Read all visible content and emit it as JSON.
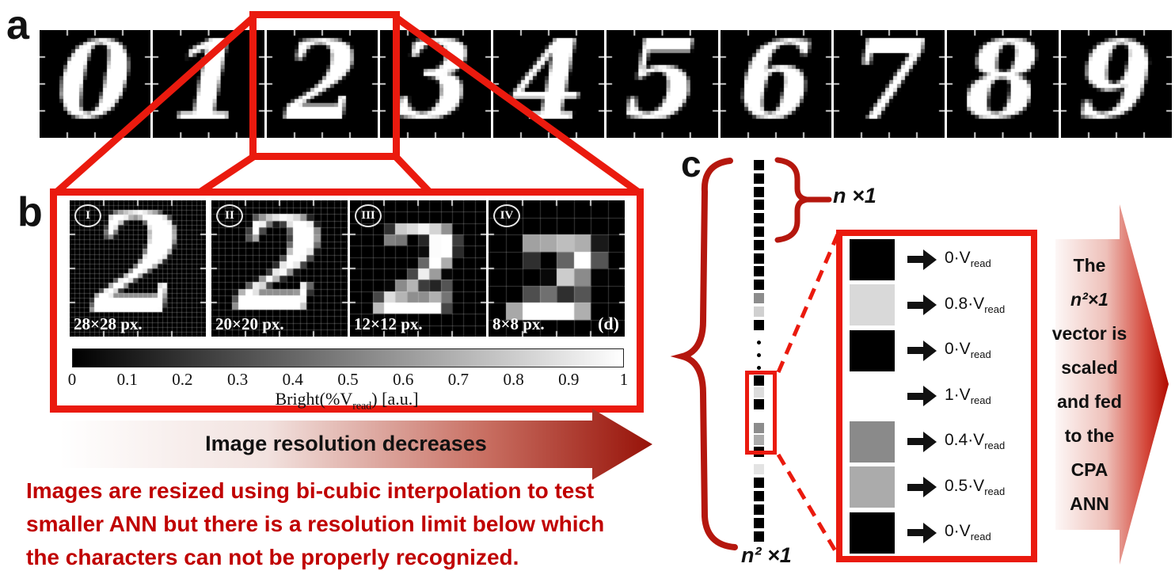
{
  "panel_a": {
    "label": "a",
    "digits": [
      "0",
      "1",
      "2",
      "3",
      "4",
      "5",
      "6",
      "7",
      "8",
      "9"
    ],
    "highlighted_digit": "2"
  },
  "panel_b": {
    "label": "b",
    "images": [
      {
        "numeral": "I",
        "resolution": 28,
        "caption": "28×28 px.",
        "corner_label": ""
      },
      {
        "numeral": "II",
        "resolution": 20,
        "caption": "20×20 px.",
        "corner_label": ""
      },
      {
        "numeral": "III",
        "resolution": 12,
        "caption": "12×12 px.",
        "corner_label": ""
      },
      {
        "numeral": "IV",
        "resolution": 8,
        "caption": "8×8 px.",
        "corner_label": "(d)"
      }
    ],
    "colorbar": {
      "tick_labels": [
        "0",
        "0.1",
        "0.2",
        "0.3",
        "0.4",
        "0.5",
        "0.6",
        "0.7",
        "0.8",
        "0.9",
        "1"
      ],
      "label_pre": "Bright(%V",
      "label_sub": "read",
      "label_post": ") [a.u.]"
    }
  },
  "resolution_arrow_label": "Image resolution decreases",
  "caption_lines": [
    "Images are resized using bi-cubic interpolation to test",
    "smaller ANN but there is a resolution limit below which",
    "the characters can not be properly recognized."
  ],
  "panel_c": {
    "label": "c",
    "n_top_label": "n ×1",
    "n_bottom_label": "n² ×1",
    "vector_cells": [
      "#000000",
      "#000000",
      "#000000",
      "#000000",
      "#000000",
      "#000000",
      "#000000",
      "#000000",
      "#000000",
      "#000000",
      "#8c8c8c",
      "#d0d0d0",
      "#000000",
      "DOTS",
      "#000000",
      "#dcdcdc",
      "#000000",
      "#ffffff",
      "#8c8c8c",
      "#ababab",
      "#000000",
      "#e3e3e3",
      "#000000",
      "#000000",
      "#000000",
      "#000000",
      "#000000"
    ],
    "zoom_rows": [
      {
        "color": "#000000",
        "value": "0"
      },
      {
        "color": "#d9d9d9",
        "value": "0.8"
      },
      {
        "color": "#000000",
        "value": "0"
      },
      {
        "color": "#ffffff",
        "value": "1"
      },
      {
        "color": "#8a8a8a",
        "value": "0.4"
      },
      {
        "color": "#ababab",
        "value": "0.5"
      },
      {
        "color": "#000000",
        "value": "0"
      }
    ],
    "voltage_unit_pre": "·V",
    "voltage_unit_sub": "read"
  },
  "feed_arrow_lines": [
    "The",
    "n²×1",
    "vector is",
    "scaled",
    "and fed",
    "to the",
    "CPA",
    "ANN"
  ],
  "colors": {
    "bright_red": "#ea1a0e",
    "dark_red_text": "#c00000",
    "arrow_gradient_end": "#9c1208",
    "brace_red": "#b5170e"
  }
}
